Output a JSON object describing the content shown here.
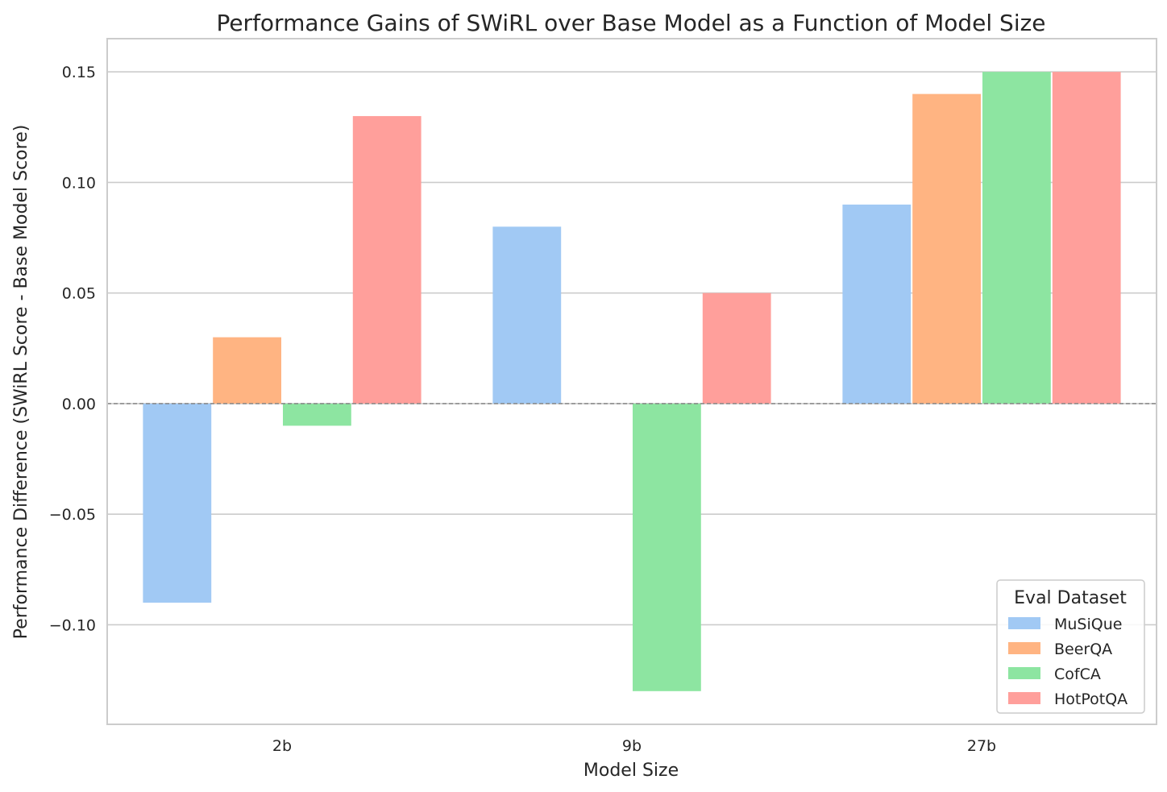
{
  "chart_data": {
    "type": "bar",
    "title": "Performance Gains of SWiRL over Base Model as a Function of Model Size",
    "xlabel": "Model Size",
    "ylabel": "Performance Difference (SWiRL Score - Base Model Score)",
    "categories": [
      "2b",
      "9b",
      "27b"
    ],
    "series": [
      {
        "name": "MuSiQue",
        "color": "#a1c9f4",
        "values": [
          -0.09,
          0.08,
          0.09
        ]
      },
      {
        "name": "BeerQA",
        "color": "#ffb482",
        "values": [
          0.03,
          0.0,
          0.14
        ]
      },
      {
        "name": "CofCA",
        "color": "#8de5a1",
        "values": [
          -0.01,
          -0.13,
          0.15
        ]
      },
      {
        "name": "HotPotQA",
        "color": "#ff9f9b",
        "values": [
          0.13,
          0.05,
          0.15
        ]
      }
    ],
    "ylim": [
      -0.145,
      0.165
    ],
    "yticks": [
      -0.1,
      -0.05,
      0.0,
      0.05,
      0.1,
      0.15
    ],
    "ytick_labels": [
      "−0.10",
      "−0.05",
      "0.00",
      "0.05",
      "0.10",
      "0.15"
    ],
    "grid": true,
    "zero_line": true,
    "legend": {
      "title": "Eval Dataset",
      "position": "lower-right"
    }
  }
}
